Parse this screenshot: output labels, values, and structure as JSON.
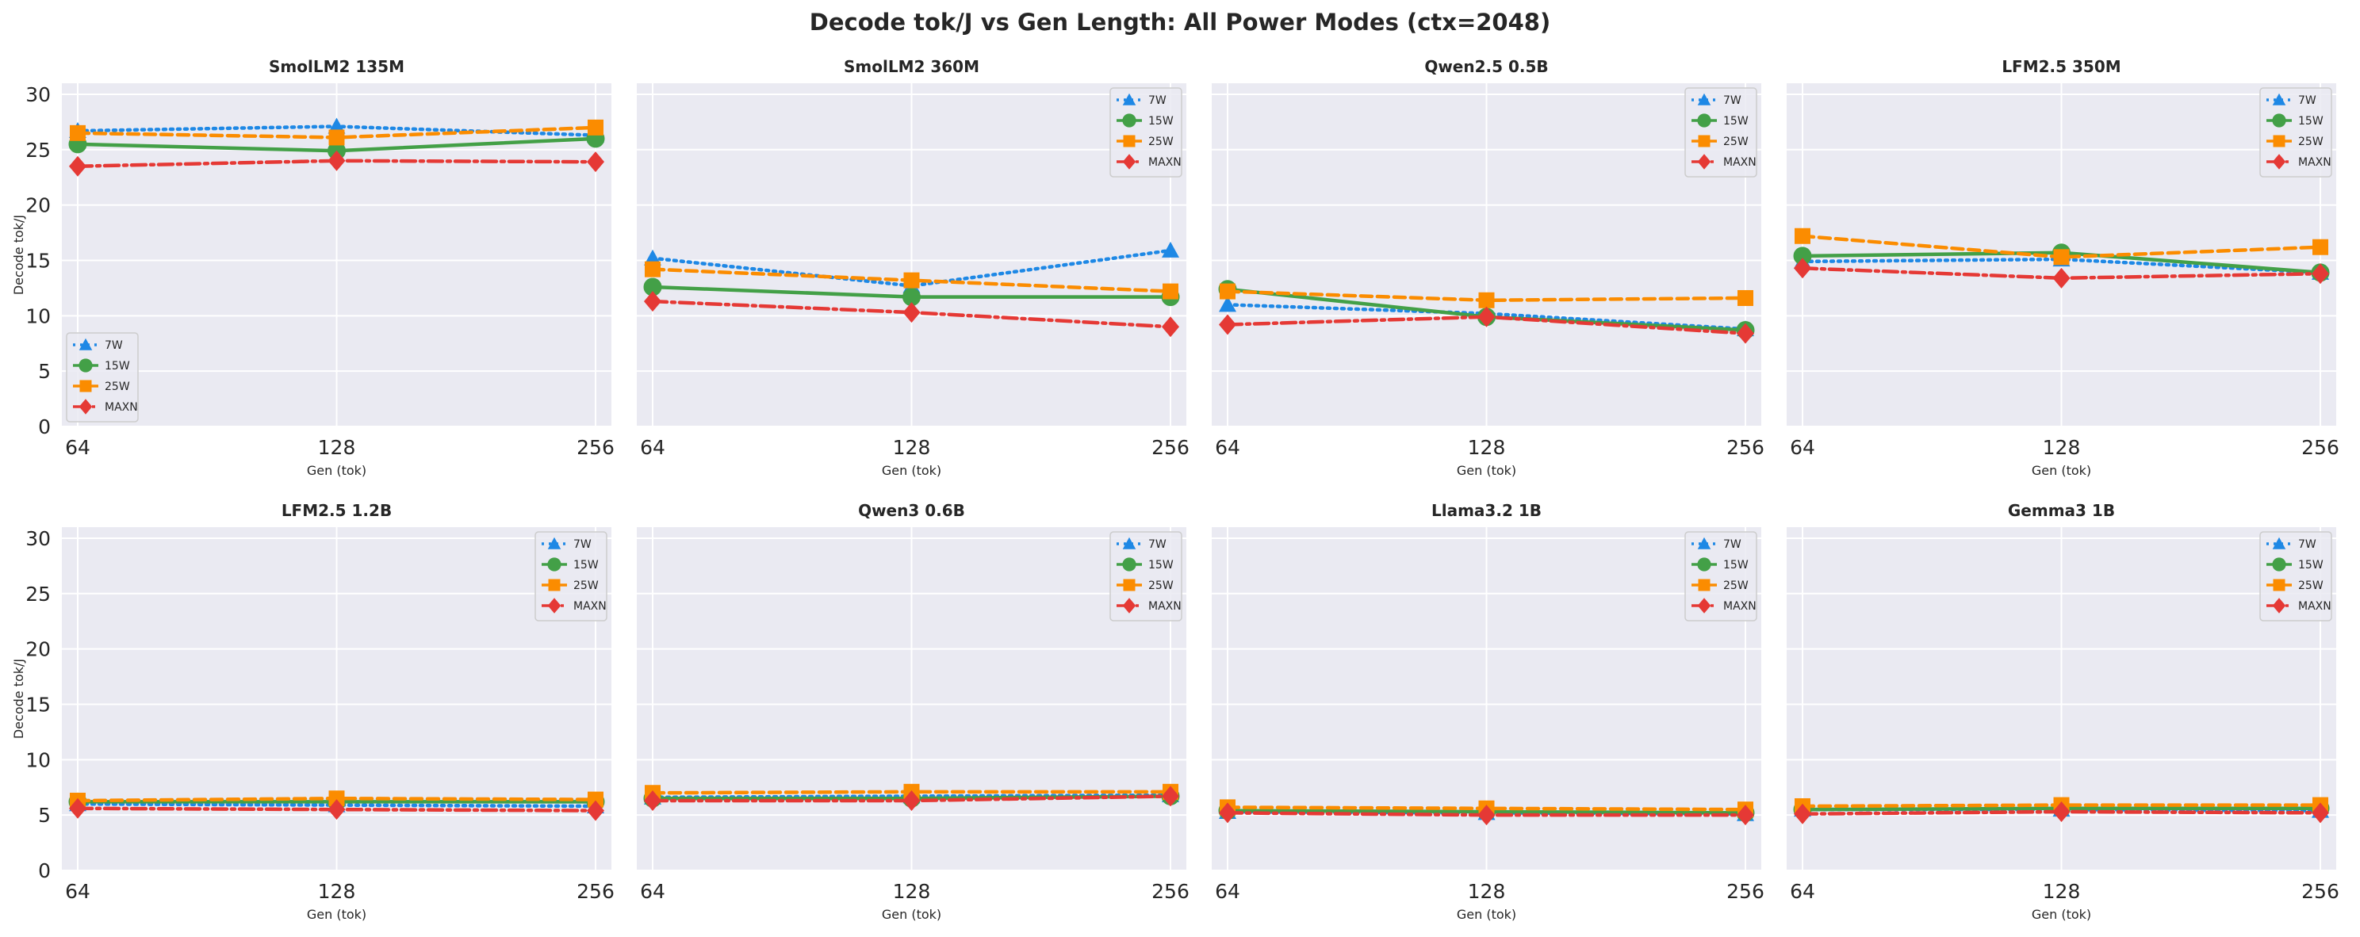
{
  "suptitle": "Decode tok/J vs Gen Length: All Power Modes (ctx=2048)",
  "chart_data": [
    {
      "type": "line",
      "title": "SmolLM2 135M",
      "xlabel": "Gen (tok)",
      "ylabel": "Decode tok/J",
      "x": [
        64,
        128,
        256
      ],
      "xticks": [
        "64",
        "128",
        "256"
      ],
      "yticks": [
        "0",
        "5",
        "10",
        "15",
        "20",
        "25",
        "30"
      ],
      "ylim": [
        0,
        31
      ],
      "grid": true,
      "legend": "lower-left",
      "series": [
        {
          "name": "7W",
          "color": "#1e88e5",
          "values": [
            26.7,
            27.1,
            26.3
          ]
        },
        {
          "name": "15W",
          "color": "#43a047",
          "values": [
            25.5,
            24.9,
            26.0
          ]
        },
        {
          "name": "25W",
          "color": "#fb8c00",
          "values": [
            26.5,
            26.1,
            27.0
          ]
        },
        {
          "name": "MAXN",
          "color": "#e53935",
          "values": [
            23.5,
            24.0,
            23.9
          ]
        }
      ]
    },
    {
      "type": "line",
      "title": "SmolLM2 360M",
      "xlabel": "Gen (tok)",
      "ylabel": "",
      "x": [
        64,
        128,
        256
      ],
      "xticks": [
        "64",
        "128",
        "256"
      ],
      "yticks": [],
      "ylim": [
        0,
        31
      ],
      "grid": true,
      "legend": "top-right",
      "series": [
        {
          "name": "7W",
          "color": "#1e88e5",
          "values": [
            15.2,
            12.7,
            15.9
          ]
        },
        {
          "name": "15W",
          "color": "#43a047",
          "values": [
            12.6,
            11.7,
            11.7
          ]
        },
        {
          "name": "25W",
          "color": "#fb8c00",
          "values": [
            14.2,
            13.2,
            12.2
          ]
        },
        {
          "name": "MAXN",
          "color": "#e53935",
          "values": [
            11.3,
            10.3,
            9.0
          ]
        }
      ]
    },
    {
      "type": "line",
      "title": "Qwen2.5 0.5B",
      "xlabel": "Gen (tok)",
      "ylabel": "",
      "x": [
        64,
        128,
        256
      ],
      "xticks": [
        "64",
        "128",
        "256"
      ],
      "yticks": [],
      "ylim": [
        0,
        31
      ],
      "grid": true,
      "legend": "top-right",
      "series": [
        {
          "name": "7W",
          "color": "#1e88e5",
          "values": [
            11.0,
            10.2,
            8.8
          ]
        },
        {
          "name": "15W",
          "color": "#43a047",
          "values": [
            12.4,
            9.9,
            8.7
          ]
        },
        {
          "name": "25W",
          "color": "#fb8c00",
          "values": [
            12.2,
            11.4,
            11.6
          ]
        },
        {
          "name": "MAXN",
          "color": "#e53935",
          "values": [
            9.2,
            9.9,
            8.4
          ]
        }
      ]
    },
    {
      "type": "line",
      "title": "LFM2.5 350M",
      "xlabel": "Gen (tok)",
      "ylabel": "",
      "x": [
        64,
        128,
        256
      ],
      "xticks": [
        "64",
        "128",
        "256"
      ],
      "yticks": [],
      "ylim": [
        0,
        31
      ],
      "grid": true,
      "legend": "top-right",
      "series": [
        {
          "name": "7W",
          "color": "#1e88e5",
          "values": [
            14.9,
            15.1,
            13.9
          ]
        },
        {
          "name": "15W",
          "color": "#43a047",
          "values": [
            15.4,
            15.7,
            13.9
          ]
        },
        {
          "name": "25W",
          "color": "#fb8c00",
          "values": [
            17.2,
            15.3,
            16.2
          ]
        },
        {
          "name": "MAXN",
          "color": "#e53935",
          "values": [
            14.3,
            13.4,
            13.8
          ]
        }
      ]
    },
    {
      "type": "line",
      "title": "LFM2.5 1.2B",
      "xlabel": "Gen (tok)",
      "ylabel": "Decode tok/J",
      "x": [
        64,
        128,
        256
      ],
      "xticks": [
        "64",
        "128",
        "256"
      ],
      "yticks": [
        "0",
        "5",
        "10",
        "15",
        "20",
        "25",
        "30"
      ],
      "ylim": [
        0,
        31
      ],
      "grid": true,
      "legend": "top-right",
      "series": [
        {
          "name": "7W",
          "color": "#1e88e5",
          "values": [
            6.0,
            5.9,
            5.8
          ]
        },
        {
          "name": "15W",
          "color": "#43a047",
          "values": [
            6.2,
            6.2,
            6.2
          ]
        },
        {
          "name": "25W",
          "color": "#fb8c00",
          "values": [
            6.3,
            6.5,
            6.4
          ]
        },
        {
          "name": "MAXN",
          "color": "#e53935",
          "values": [
            5.6,
            5.5,
            5.4
          ]
        }
      ]
    },
    {
      "type": "line",
      "title": "Qwen3 0.6B",
      "xlabel": "Gen (tok)",
      "ylabel": "",
      "x": [
        64,
        128,
        256
      ],
      "xticks": [
        "64",
        "128",
        "256"
      ],
      "yticks": [],
      "ylim": [
        0,
        31
      ],
      "grid": true,
      "legend": "top-right",
      "series": [
        {
          "name": "7W",
          "color": "#1e88e5",
          "values": [
            6.6,
            6.7,
            6.8
          ]
        },
        {
          "name": "15W",
          "color": "#43a047",
          "values": [
            6.5,
            6.5,
            6.7
          ]
        },
        {
          "name": "25W",
          "color": "#fb8c00",
          "values": [
            7.0,
            7.1,
            7.1
          ]
        },
        {
          "name": "MAXN",
          "color": "#e53935",
          "values": [
            6.3,
            6.3,
            6.7
          ]
        }
      ]
    },
    {
      "type": "line",
      "title": "Llama3.2 1B",
      "xlabel": "Gen (tok)",
      "ylabel": "",
      "x": [
        64,
        128,
        256
      ],
      "xticks": [
        "64",
        "128",
        "256"
      ],
      "yticks": [],
      "ylim": [
        0,
        31
      ],
      "grid": true,
      "legend": "top-right",
      "series": [
        {
          "name": "7W",
          "color": "#1e88e5",
          "values": [
            5.3,
            5.2,
            5.1
          ]
        },
        {
          "name": "15W",
          "color": "#43a047",
          "values": [
            5.4,
            5.3,
            5.2
          ]
        },
        {
          "name": "25W",
          "color": "#fb8c00",
          "values": [
            5.7,
            5.6,
            5.5
          ]
        },
        {
          "name": "MAXN",
          "color": "#e53935",
          "values": [
            5.2,
            5.0,
            5.0
          ]
        }
      ]
    },
    {
      "type": "line",
      "title": "Gemma3 1B",
      "xlabel": "Gen (tok)",
      "ylabel": "",
      "x": [
        64,
        128,
        256
      ],
      "xticks": [
        "64",
        "128",
        "256"
      ],
      "yticks": [],
      "ylim": [
        0,
        31
      ],
      "grid": true,
      "legend": "top-right",
      "series": [
        {
          "name": "7W",
          "color": "#1e88e5",
          "values": [
            5.5,
            5.5,
            5.4
          ]
        },
        {
          "name": "15W",
          "color": "#43a047",
          "values": [
            5.5,
            5.6,
            5.6
          ]
        },
        {
          "name": "25W",
          "color": "#fb8c00",
          "values": [
            5.8,
            5.9,
            5.9
          ]
        },
        {
          "name": "MAXN",
          "color": "#e53935",
          "values": [
            5.1,
            5.3,
            5.2
          ]
        }
      ]
    }
  ]
}
